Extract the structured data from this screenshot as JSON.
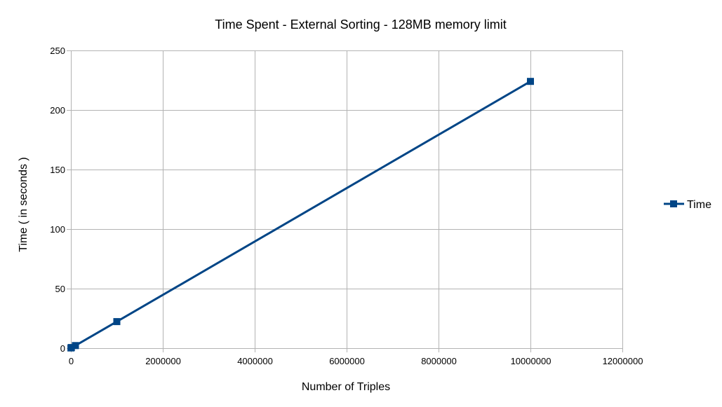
{
  "chart_data": {
    "type": "line",
    "title": "Time Spent - External Sorting - 128MB memory limit",
    "xlabel": "Number of Triples",
    "ylabel": "Time ( in seconds )",
    "xlim": [
      0,
      12000000
    ],
    "ylim": [
      0,
      250
    ],
    "x_ticks": [
      0,
      2000000,
      4000000,
      6000000,
      8000000,
      10000000,
      12000000
    ],
    "y_ticks": [
      0,
      50,
      100,
      150,
      200,
      250
    ],
    "x_tick_labels": [
      "0",
      "2000000",
      "4000000",
      "6000000",
      "8000000",
      "10000000",
      "12000000"
    ],
    "y_tick_labels": [
      "0",
      "50",
      "100",
      "150",
      "200",
      "250"
    ],
    "grid": true,
    "legend_position": "right",
    "series": [
      {
        "name": "Time",
        "color": "#004586",
        "marker": "square",
        "x": [
          1000,
          10000,
          100000,
          1000000,
          10000000
        ],
        "y": [
          0.2,
          0.5,
          2.2,
          22.3,
          224
        ]
      }
    ]
  }
}
